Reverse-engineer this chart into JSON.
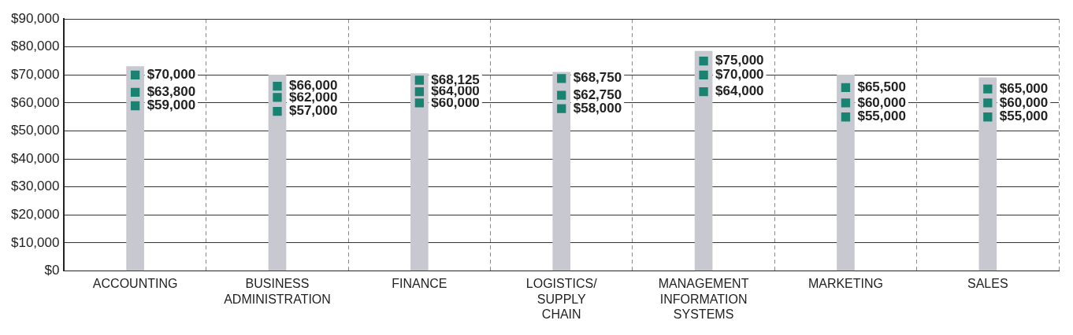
{
  "chart_data": {
    "type": "bar",
    "categories": [
      "ACCOUNTING",
      "BUSINESS ADMINISTRATION",
      "FINANCE",
      "LOGISTICS/ SUPPLY CHAIN",
      "MANAGEMENT INFORMATION SYSTEMS",
      "MARKETING",
      "SALES"
    ],
    "series": [
      {
        "color": "#c8c8d0",
        "values": [
          73000,
          70000,
          70500,
          71000,
          78500,
          70000,
          69000
        ]
      },
      {
        "type": "scatter",
        "color": "#1a8270",
        "values": [
          59000,
          57000,
          60000,
          58000,
          64000,
          55000,
          55000
        ],
        "value_labels": [
          "$59,000",
          "$57,000",
          "$60,000",
          "$58,000",
          "$64,000",
          "$55,000",
          "$55,000"
        ]
      },
      {
        "type": "scatter",
        "color": "#1a8270",
        "values": [
          63800,
          62000,
          64000,
          62750,
          70000,
          60000,
          60000
        ],
        "value_labels": [
          "$63,800",
          "$62,000",
          "$64,000",
          "$62,750",
          "$70,000",
          "$60,000",
          "$60,000"
        ]
      },
      {
        "type": "scatter",
        "color": "#1a8270",
        "values": [
          70000,
          66000,
          68125,
          68750,
          75000,
          65500,
          65000
        ],
        "value_labels": [
          "$70,000",
          "$66,000",
          "$68,125",
          "$68,750",
          "$75,000",
          "$65,500",
          "$65,000"
        ]
      }
    ],
    "ylim": [
      0,
      90000
    ],
    "yticks": [
      {
        "value": 0,
        "label": "$0"
      },
      {
        "value": 10000,
        "label": "$10,000"
      },
      {
        "value": 20000,
        "label": "$20,000"
      },
      {
        "value": 30000,
        "label": "$30,000"
      },
      {
        "value": 40000,
        "label": "$40,000"
      },
      {
        "value": 50000,
        "label": "$50,000"
      },
      {
        "value": 60000,
        "label": "$60,000"
      },
      {
        "value": 70000,
        "label": "$70,000"
      },
      {
        "value": 80000,
        "label": "$80,000"
      },
      {
        "value": 90000,
        "label": "$90,000"
      }
    ],
    "grid": true,
    "marker": "square",
    "legend": false
  }
}
